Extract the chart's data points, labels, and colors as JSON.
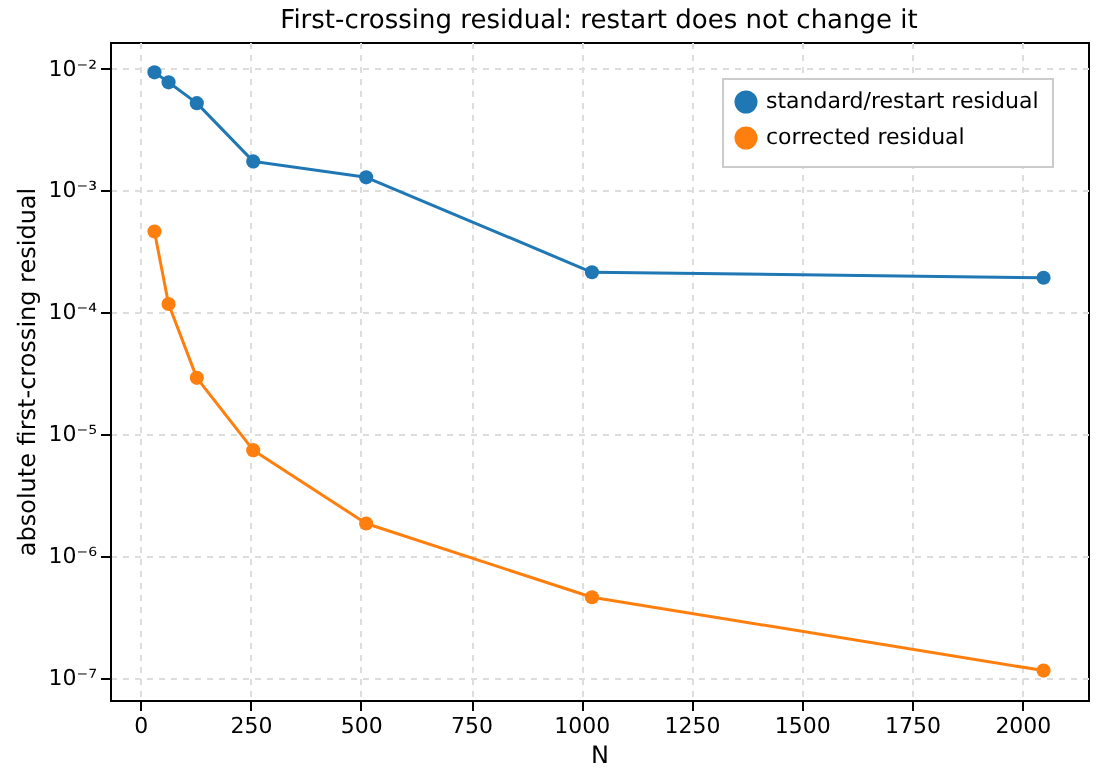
{
  "chart_data": {
    "type": "line",
    "title": "First-crossing residual: restart does not change it",
    "xlabel": "N",
    "ylabel": "absolute first-crossing residual",
    "x": [
      32,
      64,
      128,
      256,
      512,
      1024,
      2048
    ],
    "series": [
      {
        "name": "standard/restart residual",
        "color": "#1f77b4",
        "values": [
          0.0093,
          0.0077,
          0.0052,
          0.00173,
          0.00128,
          0.000213,
          0.000192
        ]
      },
      {
        "name": "corrected residual",
        "color": "#ff7f0e",
        "values": [
          0.00046,
          0.000117,
          2.9e-05,
          7.4e-06,
          1.85e-06,
          4.6e-07,
          1.15e-07
        ]
      }
    ],
    "log": "y",
    "xlim": [
      -68.8,
      2148.8
    ],
    "xticks": [
      0,
      250,
      500,
      750,
      1000,
      1250,
      1500,
      1750,
      2000
    ],
    "ylim": [
      6.6e-08,
      0.0165
    ],
    "yticks": [
      {
        "value": 1e-07,
        "label": "10⁻⁷"
      },
      {
        "value": 1e-06,
        "label": "10⁻⁶"
      },
      {
        "value": 1e-05,
        "label": "10⁻⁵"
      },
      {
        "value": 0.0001,
        "label": "10⁻⁴"
      },
      {
        "value": 0.001,
        "label": "10⁻³"
      },
      {
        "value": 0.01,
        "label": "10⁻²"
      }
    ],
    "grid": true,
    "legend": "top right",
    "marker": "circle",
    "line_style": "solid"
  }
}
